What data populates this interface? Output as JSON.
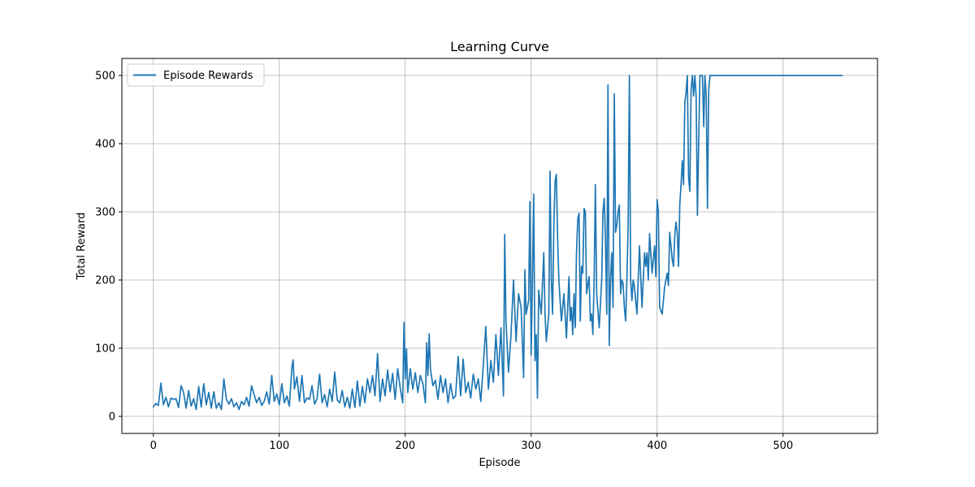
{
  "chart_data": {
    "type": "line",
    "title": "Learning Curve",
    "xlabel": "Episode",
    "ylabel": "Total Reward",
    "xlim": [
      -25,
      575
    ],
    "ylim": [
      -25,
      525
    ],
    "xticks": [
      0,
      100,
      200,
      300,
      400,
      500
    ],
    "yticks": [
      0,
      100,
      200,
      300,
      400,
      500
    ],
    "grid": true,
    "legend_position": "top-left",
    "series": [
      {
        "name": "Episode Rewards",
        "color": "#1f77b4",
        "keypoints": [
          [
            0,
            14
          ],
          [
            2,
            19
          ],
          [
            4,
            16
          ],
          [
            6,
            49
          ],
          [
            8,
            17
          ],
          [
            10,
            28
          ],
          [
            12,
            14
          ],
          [
            14,
            27
          ],
          [
            16,
            25
          ],
          [
            18,
            26
          ],
          [
            20,
            13
          ],
          [
            22,
            45
          ],
          [
            24,
            35
          ],
          [
            26,
            12
          ],
          [
            28,
            38
          ],
          [
            30,
            15
          ],
          [
            32,
            26
          ],
          [
            34,
            10
          ],
          [
            36,
            44
          ],
          [
            38,
            14
          ],
          [
            40,
            48
          ],
          [
            42,
            17
          ],
          [
            44,
            35
          ],
          [
            46,
            12
          ],
          [
            48,
            36
          ],
          [
            50,
            12
          ],
          [
            52,
            20
          ],
          [
            54,
            10
          ],
          [
            56,
            55
          ],
          [
            58,
            25
          ],
          [
            60,
            18
          ],
          [
            62,
            26
          ],
          [
            64,
            14
          ],
          [
            66,
            20
          ],
          [
            68,
            10
          ],
          [
            70,
            22
          ],
          [
            72,
            17
          ],
          [
            74,
            28
          ],
          [
            76,
            15
          ],
          [
            78,
            45
          ],
          [
            80,
            32
          ],
          [
            82,
            20
          ],
          [
            84,
            28
          ],
          [
            86,
            16
          ],
          [
            88,
            22
          ],
          [
            90,
            36
          ],
          [
            92,
            18
          ],
          [
            94,
            60
          ],
          [
            96,
            22
          ],
          [
            98,
            33
          ],
          [
            100,
            17
          ],
          [
            102,
            48
          ],
          [
            104,
            20
          ],
          [
            106,
            30
          ],
          [
            108,
            15
          ],
          [
            110,
            72
          ],
          [
            111,
            83
          ],
          [
            112,
            40
          ],
          [
            114,
            58
          ],
          [
            116,
            22
          ],
          [
            118,
            60
          ],
          [
            120,
            20
          ],
          [
            122,
            27
          ],
          [
            124,
            25
          ],
          [
            126,
            45
          ],
          [
            128,
            18
          ],
          [
            130,
            26
          ],
          [
            132,
            62
          ],
          [
            134,
            20
          ],
          [
            136,
            32
          ],
          [
            138,
            14
          ],
          [
            140,
            40
          ],
          [
            142,
            22
          ],
          [
            144,
            65
          ],
          [
            146,
            24
          ],
          [
            148,
            20
          ],
          [
            150,
            38
          ],
          [
            152,
            14
          ],
          [
            154,
            28
          ],
          [
            156,
            12
          ],
          [
            158,
            40
          ],
          [
            160,
            13
          ],
          [
            162,
            52
          ],
          [
            164,
            15
          ],
          [
            166,
            44
          ],
          [
            168,
            20
          ],
          [
            170,
            55
          ],
          [
            172,
            35
          ],
          [
            174,
            60
          ],
          [
            176,
            30
          ],
          [
            178,
            92
          ],
          [
            180,
            22
          ],
          [
            182,
            55
          ],
          [
            184,
            30
          ],
          [
            186,
            68
          ],
          [
            188,
            36
          ],
          [
            190,
            63
          ],
          [
            192,
            25
          ],
          [
            194,
            70
          ],
          [
            196,
            42
          ],
          [
            198,
            20
          ],
          [
            199,
            138
          ],
          [
            200,
            55
          ],
          [
            201,
            99
          ],
          [
            202,
            35
          ],
          [
            204,
            70
          ],
          [
            206,
            40
          ],
          [
            208,
            64
          ],
          [
            210,
            35
          ],
          [
            212,
            60
          ],
          [
            214,
            48
          ],
          [
            216,
            20
          ],
          [
            217,
            108
          ],
          [
            218,
            60
          ],
          [
            219,
            121
          ],
          [
            220,
            70
          ],
          [
            222,
            45
          ],
          [
            224,
            53
          ],
          [
            226,
            25
          ],
          [
            228,
            60
          ],
          [
            230,
            35
          ],
          [
            232,
            55
          ],
          [
            234,
            20
          ],
          [
            236,
            48
          ],
          [
            238,
            26
          ],
          [
            240,
            30
          ],
          [
            242,
            88
          ],
          [
            244,
            30
          ],
          [
            246,
            84
          ],
          [
            248,
            35
          ],
          [
            250,
            50
          ],
          [
            252,
            27
          ],
          [
            254,
            62
          ],
          [
            256,
            40
          ],
          [
            258,
            55
          ],
          [
            260,
            22
          ],
          [
            262,
            75
          ],
          [
            264,
            132
          ],
          [
            266,
            40
          ],
          [
            268,
            82
          ],
          [
            270,
            50
          ],
          [
            272,
            120
          ],
          [
            274,
            60
          ],
          [
            276,
            130
          ],
          [
            278,
            30
          ],
          [
            279,
            267
          ],
          [
            280,
            140
          ],
          [
            282,
            65
          ],
          [
            284,
            120
          ],
          [
            286,
            200
          ],
          [
            288,
            110
          ],
          [
            290,
            180
          ],
          [
            292,
            160
          ],
          [
            294,
            57
          ],
          [
            295,
            215
          ],
          [
            296,
            150
          ],
          [
            298,
            170
          ],
          [
            299,
            315
          ],
          [
            300,
            90
          ],
          [
            301,
            200
          ],
          [
            302,
            326
          ],
          [
            303,
            82
          ],
          [
            304,
            120
          ],
          [
            305,
            27
          ],
          [
            306,
            185
          ],
          [
            308,
            150
          ],
          [
            310,
            240
          ],
          [
            311,
            150
          ],
          [
            312,
            110
          ],
          [
            314,
            150
          ],
          [
            315,
            360
          ],
          [
            316,
            200
          ],
          [
            317,
            150
          ],
          [
            318,
            280
          ],
          [
            319,
            345
          ],
          [
            320,
            355
          ],
          [
            321,
            260
          ],
          [
            322,
            200
          ],
          [
            324,
            140
          ],
          [
            326,
            180
          ],
          [
            328,
            115
          ],
          [
            330,
            205
          ],
          [
            331,
            140
          ],
          [
            332,
            160
          ],
          [
            333,
            120
          ],
          [
            334,
            180
          ],
          [
            335,
            130
          ],
          [
            336,
            240
          ],
          [
            337,
            290
          ],
          [
            338,
            298
          ],
          [
            339,
            140
          ],
          [
            340,
            220
          ],
          [
            341,
            210
          ],
          [
            342,
            305
          ],
          [
            343,
            300
          ],
          [
            344,
            180
          ],
          [
            346,
            205
          ],
          [
            347,
            140
          ],
          [
            348,
            150
          ],
          [
            349,
            120
          ],
          [
            350,
            200
          ],
          [
            351,
            340
          ],
          [
            352,
            180
          ],
          [
            354,
            130
          ],
          [
            356,
            200
          ],
          [
            357,
            300
          ],
          [
            358,
            320
          ],
          [
            359,
            260
          ],
          [
            360,
            150
          ],
          [
            361,
            486
          ],
          [
            362,
            104
          ],
          [
            363,
            200
          ],
          [
            364,
            240
          ],
          [
            365,
            160
          ],
          [
            366,
            473
          ],
          [
            367,
            270
          ],
          [
            368,
            280
          ],
          [
            369,
            300
          ],
          [
            370,
            310
          ],
          [
            371,
            180
          ],
          [
            372,
            200
          ],
          [
            373,
            195
          ],
          [
            374,
            160
          ],
          [
            375,
            140
          ],
          [
            376,
            200
          ],
          [
            377,
            280
          ],
          [
            378,
            500
          ],
          [
            379,
            200
          ],
          [
            380,
            170
          ],
          [
            381,
            200
          ],
          [
            382,
            190
          ],
          [
            384,
            150
          ],
          [
            386,
            250
          ],
          [
            388,
            160
          ],
          [
            390,
            240
          ],
          [
            391,
            220
          ],
          [
            392,
            240
          ],
          [
            393,
            200
          ],
          [
            394,
            268
          ],
          [
            396,
            210
          ],
          [
            398,
            250
          ],
          [
            399,
            205
          ],
          [
            400,
            318
          ],
          [
            401,
            300
          ],
          [
            402,
            160
          ],
          [
            404,
            150
          ],
          [
            406,
            190
          ],
          [
            408,
            210
          ],
          [
            409,
            192
          ],
          [
            410,
            270
          ],
          [
            412,
            230
          ],
          [
            413,
            220
          ],
          [
            414,
            265
          ],
          [
            415,
            285
          ],
          [
            416,
            270
          ],
          [
            417,
            220
          ],
          [
            418,
            310
          ],
          [
            419,
            340
          ],
          [
            420,
            375
          ],
          [
            421,
            340
          ],
          [
            422,
            460
          ],
          [
            423,
            475
          ],
          [
            424,
            500
          ],
          [
            425,
            350
          ],
          [
            426,
            330
          ],
          [
            427,
            480
          ],
          [
            428,
            500
          ],
          [
            429,
            470
          ],
          [
            430,
            500
          ],
          [
            431,
            470
          ],
          [
            432,
            295
          ],
          [
            433,
            400
          ],
          [
            434,
            500
          ],
          [
            435,
            500
          ],
          [
            436,
            500
          ],
          [
            437,
            425
          ],
          [
            438,
            500
          ],
          [
            439,
            470
          ],
          [
            440,
            305
          ],
          [
            441,
            480
          ],
          [
            442,
            500
          ],
          [
            443,
            500
          ],
          [
            445,
            500
          ],
          [
            547,
            500
          ]
        ]
      }
    ]
  }
}
